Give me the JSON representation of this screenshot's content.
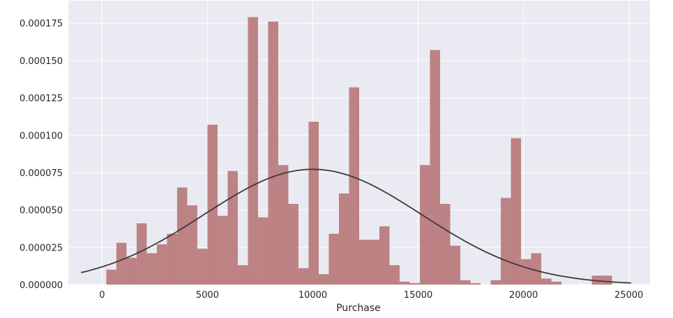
{
  "chart_data": {
    "type": "bar",
    "title": "",
    "xlabel": "Purchase",
    "ylabel": "",
    "xlim": [
      -1600,
      26000
    ],
    "ylim": [
      0,
      0.00019
    ],
    "grid": true,
    "background_color": "#eaeaf2",
    "bar_color": "#bc8284",
    "curve_color": "#3a3a3a",
    "x_ticks": [
      0,
      5000,
      10000,
      15000,
      20000,
      25000
    ],
    "x_tick_labels": [
      "0",
      "5000",
      "10000",
      "15000",
      "20000",
      "25000"
    ],
    "y_ticks": [
      0,
      2.5e-05,
      5e-05,
      7.5e-05,
      0.0001,
      0.000125,
      0.00015,
      0.000175
    ],
    "y_tick_labels": [
      "0.000000",
      "0.000025",
      "0.000050",
      "0.000075",
      "0.000100",
      "0.000125",
      "0.000150",
      "0.000175"
    ],
    "histogram": {
      "bin_edges": [
        200,
        680,
        1160,
        1640,
        2120,
        2600,
        3080,
        3560,
        4040,
        4520,
        5000,
        5480,
        5960,
        6440,
        6920,
        7400,
        7880,
        8360,
        8840,
        9320,
        9800,
        10280,
        10760,
        11240,
        11720,
        12200,
        12680,
        13160,
        13640,
        14120,
        14600,
        15080,
        15560,
        16040,
        16520,
        17000,
        17480,
        17960,
        18440,
        18920,
        19400,
        19880,
        20360,
        20840,
        21320,
        21800,
        22280,
        22760,
        23240,
        23720,
        24200
      ],
      "densities": [
        1e-05,
        2.8e-05,
        1.8e-05,
        4.1e-05,
        2.1e-05,
        2.7e-05,
        3.4e-05,
        6.5e-05,
        5.3e-05,
        2.4e-05,
        0.000107,
        4.6e-05,
        7.6e-05,
        1.3e-05,
        0.000179,
        4.5e-05,
        0.000176,
        8e-05,
        5.4e-05,
        1.1e-05,
        0.000109,
        7e-06,
        3.4e-05,
        6.1e-05,
        0.000132,
        3e-05,
        3e-05,
        3.9e-05,
        1.3e-05,
        2e-06,
        1e-06,
        8e-05,
        0.000157,
        5.4e-05,
        2.6e-05,
        3e-06,
        1e-06,
        0.0,
        3e-06,
        5.8e-05,
        9.8e-05,
        1.7e-05,
        2.1e-05,
        4e-06,
        2e-06,
        0.0,
        0.0,
        0.0,
        6e-06,
        6e-06
      ]
    },
    "fit_curve": {
      "distribution": "normal",
      "mean": 10000,
      "std": 5170,
      "x_range": [
        -1000,
        25100
      ]
    }
  }
}
